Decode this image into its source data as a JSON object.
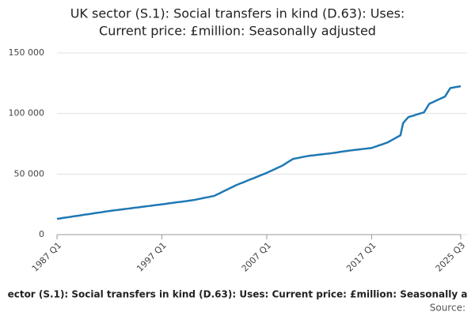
{
  "chart_data": {
    "type": "line",
    "title_lines": [
      "UK sector (S.1): Social transfers in kind (D.63): Uses:",
      "Current price: £million: Seasonally adjusted"
    ],
    "footer_title": "ector (S.1): Social transfers in kind (D.63): Uses: Current price: £million: Seasonally a",
    "source": "Source:",
    "categories": [
      "1987 Q1",
      null,
      null,
      null,
      null,
      null,
      null,
      null,
      null,
      null,
      null,
      null,
      null,
      null,
      null,
      null,
      null,
      null,
      null,
      null,
      null,
      null,
      null,
      null,
      null,
      null,
      null,
      null,
      null,
      null,
      null,
      null,
      null,
      null,
      null,
      null,
      null,
      null,
      null,
      null,
      "1997 Q1",
      null,
      null,
      null,
      null,
      null,
      null,
      null,
      null,
      null,
      null,
      null,
      null,
      null,
      null,
      null,
      null,
      null,
      null,
      null,
      null,
      null,
      null,
      null,
      null,
      null,
      null,
      null,
      null,
      null,
      null,
      null,
      null,
      null,
      null,
      null,
      null,
      null,
      null,
      null,
      "2007 Q1",
      null,
      null,
      null,
      null,
      null,
      null,
      null,
      null,
      null,
      null,
      null,
      null,
      null,
      null,
      null,
      null,
      null,
      null,
      null,
      null,
      null,
      null,
      null,
      null,
      null,
      null,
      null,
      null,
      null,
      null,
      null,
      null,
      null,
      null,
      null,
      null,
      null,
      null,
      null,
      "2017 Q1",
      null,
      null,
      null,
      null,
      null,
      null,
      null,
      null,
      null,
      null,
      null,
      null,
      null,
      null,
      null,
      null,
      null,
      null,
      null,
      null,
      null,
      null,
      null,
      null,
      null,
      null,
      null,
      null,
      null,
      null,
      null,
      null,
      null,
      "2025 Q3"
    ],
    "values": [
      13000,
      13300,
      13700,
      14000,
      14300,
      14600,
      15000,
      15300,
      15600,
      15900,
      16300,
      16600,
      16900,
      17200,
      17600,
      17900,
      18200,
      18500,
      18900,
      19200,
      19500,
      19800,
      20100,
      20300,
      20600,
      20900,
      21200,
      21400,
      21700,
      22000,
      22300,
      22500,
      22800,
      23100,
      23400,
      23600,
      23900,
      24200,
      24500,
      24700,
      25000,
      25300,
      25600,
      25900,
      26200,
      26500,
      26800,
      27000,
      27300,
      27600,
      27900,
      28200,
      28500,
      28900,
      29400,
      29800,
      30300,
      30700,
      31100,
      31600,
      32000,
      33100,
      34100,
      35200,
      36300,
      37300,
      38400,
      39400,
      40500,
      41400,
      42300,
      43100,
      44000,
      44900,
      45800,
      46600,
      47500,
      48400,
      49300,
      50100,
      51000,
      52000,
      53000,
      54000,
      55000,
      56000,
      57000,
      58400,
      59800,
      61100,
      62500,
      62900,
      63300,
      63800,
      64200,
      64600,
      65000,
      65300,
      65500,
      65800,
      66000,
      66300,
      66500,
      66800,
      67000,
      67300,
      67600,
      67900,
      68300,
      68600,
      68900,
      69200,
      69500,
      69800,
      70000,
      70300,
      70500,
      70800,
      71000,
      71300,
      71500,
      72300,
      73000,
      73800,
      74500,
      75300,
      76000,
      77200,
      78400,
      79600,
      80800,
      82000,
      92000,
      94500,
      97000,
      97700,
      98300,
      99000,
      99700,
      100300,
      101000,
      104500,
      108000,
      109000,
      110000,
      111000,
      112000,
      113000,
      114000,
      117500,
      121000,
      121400,
      121800,
      122100,
      122500
    ],
    "color": "#1f78b4",
    "ylim": [
      0,
      150000
    ],
    "yticks": [
      0,
      {
        "value": 50000,
        "label": "50 000"
      },
      {
        "value": 100000,
        "label": "100 000"
      },
      {
        "value": 150000,
        "label": "150 000"
      }
    ],
    "grid": true
  }
}
